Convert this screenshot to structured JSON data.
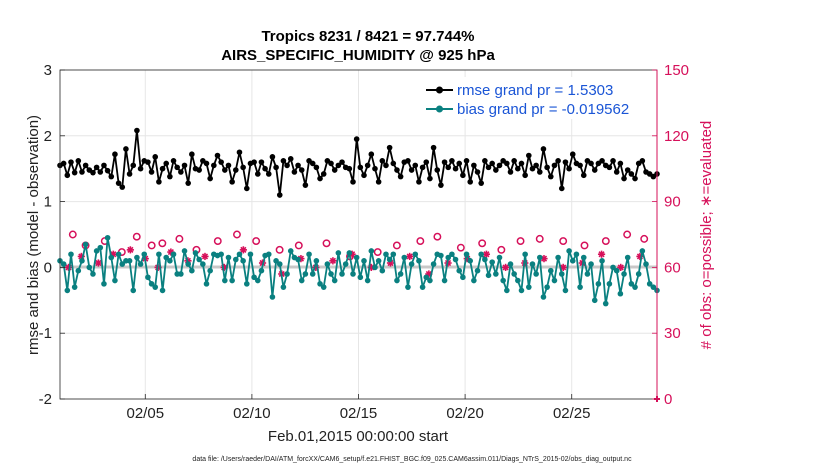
{
  "chart_data": {
    "type": "line",
    "title": "Tropics 8231 / 8421 = 97.744%",
    "subtitle": "AIRS_SPECIFIC_HUMIDITY @ 925 hPa",
    "xlabel": "Feb.01,2015 00:00:00 start",
    "ylabel": "rmse and bias (model - observation)",
    "ylabel_right": "# of obs: o=possible; ∗=evaluated",
    "footnote": "data file: /Users/raeder/DAI/ATM_forcXX/CAM6_setup/f.e21.FHIST_BGC.f09_025.CAM6assim.011/Diags_NTrS_2015-02/obs_diag_output.nc",
    "x_ticks": [
      "02/05",
      "02/10",
      "02/15",
      "02/20",
      "02/25"
    ],
    "x_tick_days": [
      5,
      10,
      15,
      20,
      25
    ],
    "x_range_days": [
      1,
      29
    ],
    "ylim": [
      -2,
      3
    ],
    "y_ticks": [
      "-2",
      "-1",
      "0",
      "1",
      "2",
      "3"
    ],
    "ylim_right": [
      0,
      150
    ],
    "y_ticks_right": [
      "0",
      "30",
      "60",
      "90",
      "120",
      "150"
    ],
    "grid": true,
    "legend_position": "top-right",
    "colors": {
      "rmse": "#000000",
      "bias": "#0a8080",
      "obs": "#d6105a",
      "legend_text": "#1a55d6",
      "zero_line": "#c8c8c8"
    },
    "series": [
      {
        "name": "rmse grand pr = 1.5303",
        "key": "rmse",
        "values": [
          1.55,
          1.58,
          1.4,
          1.6,
          1.44,
          1.62,
          1.45,
          1.55,
          1.48,
          1.44,
          1.52,
          1.45,
          1.55,
          1.47,
          1.38,
          1.72,
          1.28,
          1.22,
          1.8,
          1.42,
          1.55,
          2.08,
          1.5,
          1.62,
          1.6,
          1.45,
          1.68,
          1.3,
          1.5,
          1.58,
          1.38,
          1.62,
          1.52,
          1.45,
          1.55,
          1.28,
          1.72,
          1.5,
          1.48,
          1.62,
          1.58,
          1.35,
          1.55,
          1.7,
          1.6,
          1.48,
          1.55,
          1.3,
          1.48,
          1.75,
          1.52,
          1.2,
          1.58,
          1.6,
          1.42,
          1.6,
          1.5,
          1.42,
          1.68,
          1.52,
          1.1,
          1.62,
          1.55,
          1.65,
          1.45,
          1.55,
          1.48,
          1.25,
          1.62,
          1.58,
          1.52,
          1.35,
          1.42,
          1.62,
          1.58,
          1.48,
          1.55,
          1.6,
          1.52,
          1.5,
          1.3,
          1.95,
          1.52,
          1.4,
          1.55,
          1.72,
          1.5,
          1.3,
          1.62,
          1.55,
          1.82,
          1.58,
          1.48,
          1.38,
          1.6,
          1.62,
          1.48,
          1.55,
          1.3,
          1.52,
          1.6,
          1.35,
          1.82,
          1.48,
          1.25,
          1.6,
          1.52,
          1.62,
          1.5,
          1.58,
          1.4,
          1.62,
          1.3,
          1.55,
          1.45,
          1.28,
          1.62,
          1.52,
          1.58,
          1.48,
          1.55,
          1.62,
          1.58,
          1.45,
          1.62,
          1.5,
          1.58,
          1.4,
          1.7,
          1.5,
          1.55,
          1.45,
          1.8,
          1.52,
          1.38,
          1.55,
          1.62,
          1.2,
          1.6,
          1.5,
          1.72,
          1.58,
          1.55,
          1.4,
          1.62,
          1.58,
          1.48,
          1.58,
          1.62,
          1.55,
          1.52,
          1.62,
          1.45,
          1.58,
          1.35,
          1.48,
          1.42,
          1.35,
          1.58,
          1.62,
          1.45,
          1.42,
          1.38,
          1.42
        ]
      },
      {
        "name": "bias grand pr = -0.019562",
        "key": "bias",
        "values": [
          0.1,
          0.05,
          -0.35,
          0.2,
          -0.3,
          -0.05,
          0.1,
          0.35,
          0.0,
          -0.1,
          0.25,
          0.3,
          -0.25,
          0.45,
          0.15,
          -0.2,
          0.2,
          0.05,
          0.1,
          0.1,
          -0.35,
          0.15,
          0.05,
          0.2,
          -0.15,
          -0.25,
          -0.3,
          0.2,
          -0.35,
          0.15,
          0.1,
          0.2,
          -0.1,
          -0.1,
          0.25,
          0.05,
          -0.05,
          0.22,
          0.12,
          0.05,
          -0.25,
          -0.05,
          0.2,
          0.18,
          0.2,
          -0.2,
          0.15,
          -0.2,
          0.12,
          0.2,
          0.1,
          -0.25,
          0.2,
          -0.15,
          -0.2,
          -0.05,
          0.18,
          0.2,
          -0.45,
          0.1,
          0.05,
          -0.3,
          -0.1,
          0.25,
          0.15,
          0.12,
          -0.2,
          -0.1,
          0.2,
          -0.1,
          0.1,
          -0.25,
          -0.3,
          0.05,
          -0.1,
          -0.2,
          0.22,
          -0.1,
          0.05,
          0.22,
          -0.1,
          0.15,
          -0.15,
          0.1,
          -0.2,
          0.25,
          0.0,
          0.1,
          -0.05,
          0.2,
          0.12,
          0.2,
          -0.2,
          -0.1,
          0.15,
          -0.3,
          0.05,
          0.2,
          0.1,
          -0.3,
          -0.15,
          -0.2,
          0.05,
          0.2,
          0.18,
          -0.2,
          0.15,
          0.2,
          0.12,
          -0.05,
          -0.15,
          0.2,
          0.1,
          -0.2,
          -0.05,
          0.2,
          0.12,
          -0.12,
          0.08,
          -0.1,
          0.15,
          -0.2,
          -0.35,
          0.05,
          -0.1,
          -0.2,
          -0.35,
          0.2,
          -0.3,
          0.05,
          -0.1,
          0.15,
          -0.45,
          -0.3,
          -0.05,
          -0.2,
          0.15,
          -0.1,
          -0.35,
          0.25,
          0.1,
          0.2,
          -0.3,
          0.15,
          -0.1,
          0.05,
          -0.5,
          -0.25,
          0.1,
          -0.55,
          -0.25,
          0.0,
          -0.05,
          -0.4,
          -0.1,
          0.15,
          -0.25,
          -0.3,
          -0.1,
          0.25,
          0.05,
          -0.25,
          -0.3,
          -0.35
        ]
      },
      {
        "name": "obs possible",
        "key": "obs_possible",
        "marker": "o",
        "axis": "right",
        "x": [
          1.6,
          2.2,
          3.1,
          3.9,
          4.6,
          5.3,
          5.8,
          6.6,
          7.4,
          8.4,
          9.3,
          10.2,
          11.3,
          12.2,
          13.5,
          14.6,
          15.9,
          16.8,
          17.9,
          18.7,
          19.8,
          20.8,
          21.7,
          22.6,
          23.5,
          24.6,
          25.6,
          26.6,
          27.6,
          28.4
        ],
        "values": [
          75,
          70,
          72,
          67,
          74,
          70,
          71,
          73,
          68,
          72,
          75,
          72,
          68,
          70,
          71,
          65,
          67,
          70,
          72,
          74,
          69,
          71,
          68,
          72,
          73,
          72,
          70,
          72,
          75,
          73
        ]
      },
      {
        "name": "obs evaluated",
        "key": "obs_evaluated",
        "marker": "*",
        "axis": "right",
        "x": [
          1.4,
          2.0,
          2.8,
          3.5,
          4.3,
          5.0,
          5.6,
          6.2,
          7.0,
          7.8,
          8.7,
          9.6,
          10.5,
          11.4,
          12.3,
          13.0,
          13.8,
          14.7,
          15.6,
          16.5,
          17.4,
          18.3,
          19.2,
          20.1,
          21.0,
          21.9,
          22.8,
          23.7,
          24.6,
          25.5,
          26.4,
          27.3,
          28.2
        ],
        "values": [
          60,
          65,
          62,
          66,
          68,
          64,
          60,
          67,
          63,
          65,
          60,
          68,
          62,
          57,
          64,
          60,
          63,
          66,
          60,
          62,
          65,
          57,
          62,
          64,
          66,
          60,
          62,
          64,
          60,
          62,
          66,
          60,
          65
        ]
      }
    ]
  }
}
